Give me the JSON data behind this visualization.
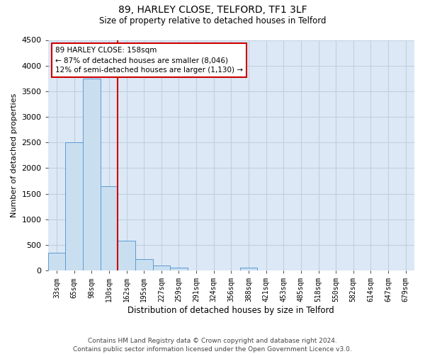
{
  "title_line1": "89, HARLEY CLOSE, TELFORD, TF1 3LF",
  "title_line2": "Size of property relative to detached houses in Telford",
  "xlabel": "Distribution of detached houses by size in Telford",
  "ylabel": "Number of detached properties",
  "footnote": "Contains HM Land Registry data © Crown copyright and database right 2024.\nContains public sector information licensed under the Open Government Licence v3.0.",
  "categories": [
    "33sqm",
    "65sqm",
    "98sqm",
    "130sqm",
    "162sqm",
    "195sqm",
    "227sqm",
    "259sqm",
    "291sqm",
    "324sqm",
    "356sqm",
    "388sqm",
    "421sqm",
    "453sqm",
    "485sqm",
    "518sqm",
    "550sqm",
    "582sqm",
    "614sqm",
    "647sqm",
    "679sqm"
  ],
  "values": [
    350,
    2500,
    3750,
    1650,
    580,
    220,
    100,
    55,
    0,
    0,
    0,
    55,
    0,
    0,
    0,
    0,
    0,
    0,
    0,
    0,
    0
  ],
  "bar_color": "#c9dff0",
  "bar_edge_color": "#5b9bd5",
  "grid_color": "#c0d0e0",
  "background_color": "#dce8f5",
  "vline_color": "#cc0000",
  "annotation_text": "89 HARLEY CLOSE: 158sqm\n← 87% of detached houses are smaller (8,046)\n12% of semi-detached houses are larger (1,130) →",
  "annotation_box_color": "#ffffff",
  "annotation_box_edge": "#cc0000",
  "ylim": [
    0,
    4500
  ],
  "yticks": [
    0,
    500,
    1000,
    1500,
    2000,
    2500,
    3000,
    3500,
    4000,
    4500
  ],
  "figsize": [
    6.0,
    5.0
  ],
  "dpi": 100
}
